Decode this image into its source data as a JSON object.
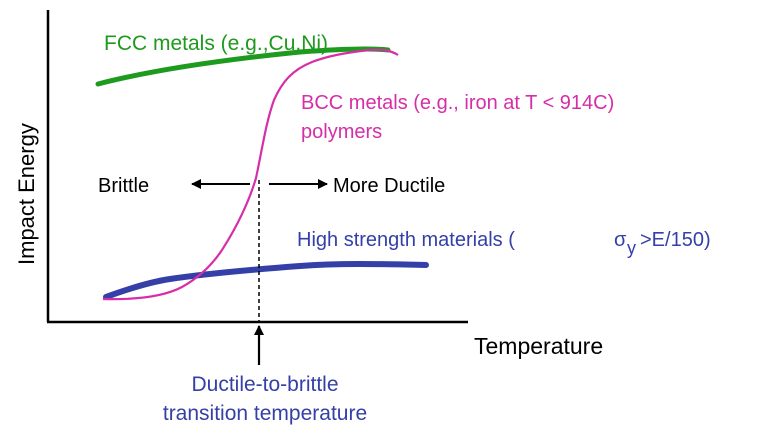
{
  "axes": {
    "x_label": "Temperature",
    "y_label": "Impact Energy"
  },
  "curves": {
    "fcc": {
      "label": "FCC metals (e.g.,Cu,Ni)",
      "color": "#1e9a1e"
    },
    "bcc": {
      "label_line1": "BCC metals (e.g., iron at T < 914C)",
      "label_line2": "polymers",
      "color": "#d62ea8"
    },
    "high_strength": {
      "label_prefix": "High strength materials (",
      "sigma": "σ",
      "subscript": "y",
      "label_suffix": ">E/150)",
      "color": "#3440a8"
    }
  },
  "annotations": {
    "brittle": "Brittle",
    "more_ductile": "More Ductile",
    "transition_line1": "Ductile-to-brittle",
    "transition_line2": "transition temperature",
    "transition_color": "#3440a8"
  }
}
